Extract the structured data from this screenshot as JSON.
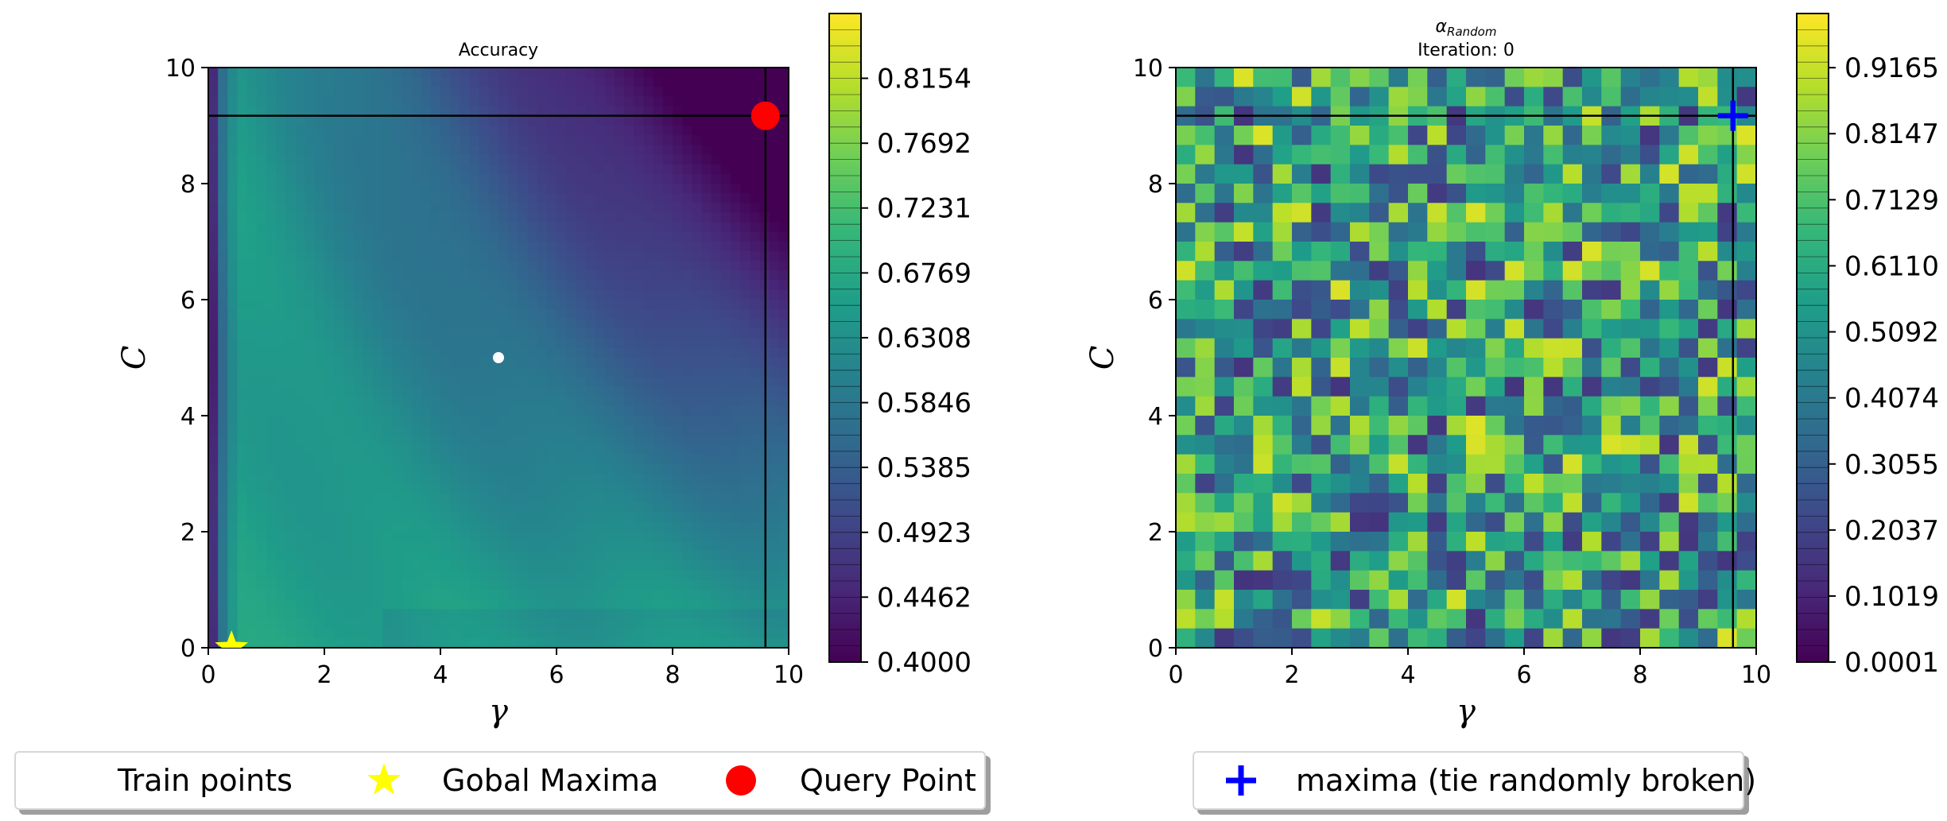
{
  "colors": {
    "viridis": [
      "#440154",
      "#482878",
      "#3e4989",
      "#31688e",
      "#26828e",
      "#1f9e89",
      "#35b779",
      "#6ece58",
      "#b5de2b",
      "#fde725"
    ],
    "star": "#ffff00",
    "query_point": "#ff0000",
    "maxima_marker": "#0000ff",
    "crosshair": "#000000",
    "train_point": "#ffffff"
  },
  "chart_data": [
    {
      "type": "heatmap",
      "title": "Accuracy",
      "xlabel": "γ",
      "ylabel": "C",
      "xlim": [
        0,
        10
      ],
      "ylim": [
        0,
        10
      ],
      "x_ticks": [
        "0",
        "2",
        "4",
        "6",
        "8",
        "10"
      ],
      "y_ticks": [
        "0",
        "2",
        "4",
        "6",
        "8",
        "10"
      ],
      "colorbar": {
        "min": 0.4,
        "max": 0.8615,
        "tick_labels": [
          "0.4000",
          "0.4462",
          "0.4923",
          "0.5385",
          "0.5846",
          "0.6308",
          "0.6769",
          "0.7231",
          "0.7692",
          "0.8154"
        ]
      },
      "crosshair": {
        "x": 9.6,
        "y": 9.17
      },
      "train_points": [
        {
          "x": 5.0,
          "y": 5.0
        }
      ],
      "global_maxima": {
        "x": 0.4,
        "y": 0.0
      },
      "query_point": {
        "x": 9.6,
        "y": 9.17
      },
      "grid": false
    },
    {
      "type": "heatmap",
      "title": "α",
      "title_sub": "Random",
      "subtitle": "Iteration: 0",
      "xlabel": "γ",
      "ylabel": "C",
      "xlim": [
        0,
        10
      ],
      "ylim": [
        0,
        10
      ],
      "x_ticks": [
        "0",
        "2",
        "4",
        "6",
        "8",
        "10"
      ],
      "y_ticks": [
        "0",
        "2",
        "4",
        "6",
        "8",
        "10"
      ],
      "colorbar": {
        "min": 0.0001,
        "max": 1.0,
        "tick_labels": [
          "0.0001",
          "0.1019",
          "0.2037",
          "0.3055",
          "0.4074",
          "0.5092",
          "0.6110",
          "0.7129",
          "0.8147",
          "0.9165"
        ]
      },
      "crosshair": {
        "x": 9.6,
        "y": 9.17
      },
      "maxima": {
        "x": 9.6,
        "y": 9.17
      },
      "grid": false
    }
  ],
  "legends": [
    {
      "items": [
        "Train points",
        "Gobal Maxima",
        "Query Point"
      ]
    },
    {
      "items": [
        "maxima (tie randomly broken)"
      ]
    }
  ]
}
